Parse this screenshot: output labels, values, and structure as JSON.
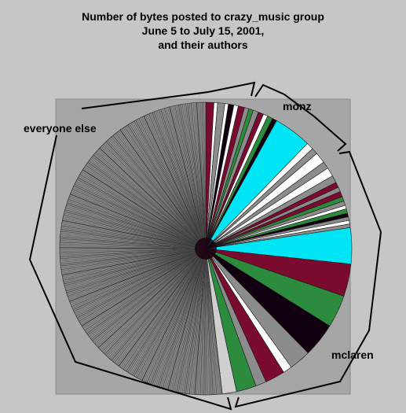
{
  "chart_data": {
    "type": "pie",
    "title_lines": [
      "Number of bytes posted to crazy_music group",
      "June 5 to July 15, 2001,",
      "and their authors"
    ],
    "annotations": [
      {
        "id": "everyone-else",
        "text": "everyone else"
      },
      {
        "id": "monz",
        "text": "monz"
      },
      {
        "id": "mclaren",
        "text": "mclaren"
      }
    ],
    "slices": [
      {
        "value": 0.9,
        "color": "#7a0a2e"
      },
      {
        "value": 0.4,
        "color": "#ffffff"
      },
      {
        "value": 0.8,
        "color": "#8c8c8c"
      },
      {
        "value": 0.4,
        "color": "#ffffff"
      },
      {
        "value": 0.6,
        "color": "#100010"
      },
      {
        "value": 0.5,
        "color": "#ffffff"
      },
      {
        "value": 0.7,
        "color": "#7a0a2e"
      },
      {
        "value": 0.5,
        "color": "#8c8c8c"
      },
      {
        "value": 0.5,
        "color": "#2d8b3e"
      },
      {
        "value": 0.6,
        "color": "#8c8c8c"
      },
      {
        "value": 0.6,
        "color": "#7a0a2e"
      },
      {
        "value": 0.5,
        "color": "#ffffff"
      },
      {
        "value": 0.6,
        "color": "#2d8b3e"
      },
      {
        "value": 0.5,
        "color": "#100010"
      },
      {
        "value": 4.2,
        "color": "#00e5f5"
      },
      {
        "value": 0.8,
        "color": "#ffffff"
      },
      {
        "value": 0.7,
        "color": "#8c8c8c"
      },
      {
        "value": 1.2,
        "color": "#ffffff"
      },
      {
        "value": 0.8,
        "color": "#8c8c8c"
      },
      {
        "value": 1.0,
        "color": "#ffffff"
      },
      {
        "value": 0.8,
        "color": "#8c8c8c"
      },
      {
        "value": 0.6,
        "color": "#7a0a2e"
      },
      {
        "value": 0.5,
        "color": "#8c8c8c"
      },
      {
        "value": 0.6,
        "color": "#7a0a2e"
      },
      {
        "value": 0.5,
        "color": "#2d8b3e"
      },
      {
        "value": 0.5,
        "color": "#8c8c8c"
      },
      {
        "value": 0.4,
        "color": "#ffffff"
      },
      {
        "value": 0.5,
        "color": "#2d8b3e"
      },
      {
        "value": 0.4,
        "color": "#100010"
      },
      {
        "value": 0.4,
        "color": "#8c8c8c"
      },
      {
        "value": 0.4,
        "color": "#ffffff"
      },
      {
        "value": 0.4,
        "color": "#8c8c8c"
      },
      {
        "value": 4.0,
        "color": "#00e5f5"
      },
      {
        "value": 3.6,
        "color": "#7a0a2e"
      },
      {
        "value": 3.6,
        "color": "#2d8b3e"
      },
      {
        "value": 3.8,
        "color": "#100010"
      },
      {
        "value": 2.4,
        "color": "#8c8c8c"
      },
      {
        "value": 1.0,
        "color": "#ffffff"
      },
      {
        "value": 2.2,
        "color": "#7a0a2e"
      },
      {
        "value": 1.2,
        "color": "#8c8c8c"
      },
      {
        "value": 2.2,
        "color": "#2d8b3e"
      },
      {
        "value": 1.6,
        "color": "#cfcfcf"
      },
      {
        "value": 52.0,
        "color": "#8c8c8c",
        "striped": true
      }
    ]
  }
}
